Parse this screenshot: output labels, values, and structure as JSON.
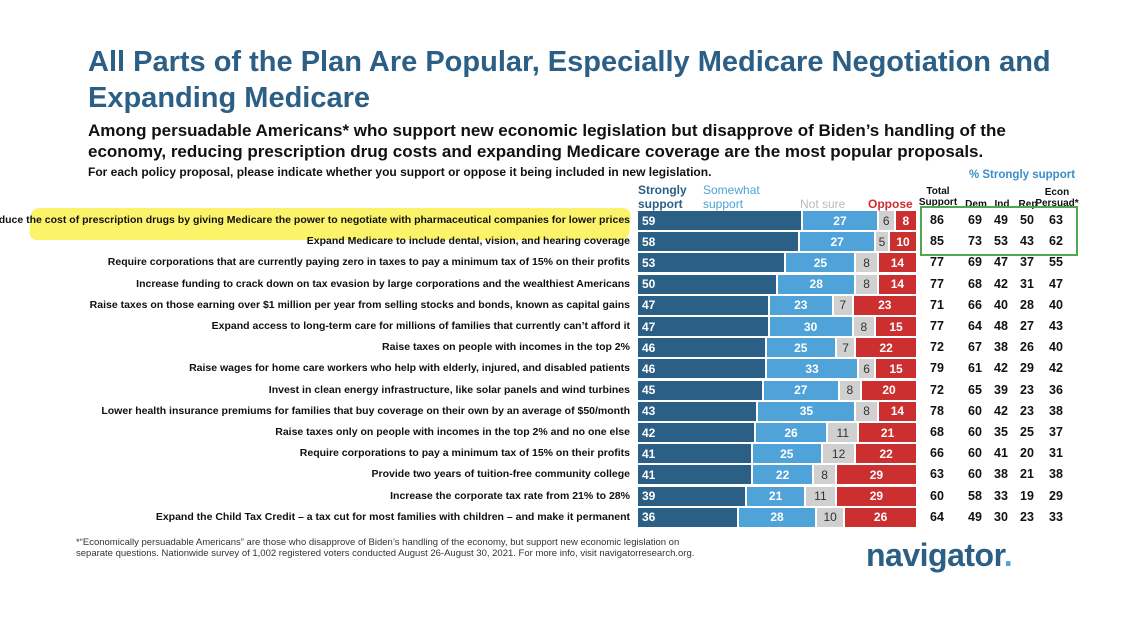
{
  "title": "All Parts of the Plan Are Popular, Especially Medicare Negotiation and Expanding Medicare",
  "subtitle": "Among persuadable Americans* who support new economic legislation but disapprove of Biden’s handling of the economy, reducing prescription drug costs and expanding Medicare coverage are the most popular proposals.",
  "question": "For each policy proposal, please indicate whether you support or oppose it being included in new legislation.",
  "headers": {
    "strongly_support": "Strongly support",
    "somewhat_support": "Somewhat support",
    "not_sure": "Not sure",
    "oppose": "Oppose",
    "total_support": "Total Support",
    "pct_strongly_support": "% Strongly support",
    "dem": "Dem",
    "ind": "Ind",
    "rep": "Rep",
    "econ_persuad": "Econ Persuad*"
  },
  "colors": {
    "strongly_support": "#2b5f86",
    "somewhat_support": "#4fa3d8",
    "not_sure": "#d0d0d0",
    "oppose": "#cc2f2f",
    "highlight": "#fbf35a",
    "box": "#4fa84f"
  },
  "chart_data": {
    "type": "bar",
    "orientation": "horizontal",
    "stacked": true,
    "categories": [
      "Reduce the cost of prescription drugs by giving Medicare the power to negotiate with pharmaceutical companies for lower prices",
      "Expand Medicare to include dental, vision, and hearing coverage",
      "Require corporations that are currently paying zero in taxes to pay a minimum tax of 15% on their profits",
      "Increase funding to crack down on tax evasion by large corporations and the wealthiest Americans",
      "Raise taxes on those earning over $1 million per year from selling stocks and bonds, known as capital gains",
      "Expand access to long-term care for millions of families that currently can’t afford it",
      "Raise taxes on people with incomes in the top 2%",
      "Raise wages for home care workers who help with elderly, injured, and disabled patients",
      "Invest in clean energy infrastructure, like solar panels and wind turbines",
      "Lower health insurance premiums for families that buy coverage on their own by an average of $50/month",
      "Raise taxes only on people with incomes in the top 2% and no one else",
      "Require corporations to pay a minimum tax of 15% on their profits",
      "Provide two years of tuition-free community college",
      "Increase the corporate tax rate from 21% to 28%",
      "Expand the Child Tax Credit – a tax cut for most families with children – and make it permanent"
    ],
    "series": [
      {
        "name": "Strongly support",
        "values": [
          59,
          58,
          53,
          50,
          47,
          47,
          46,
          46,
          45,
          43,
          42,
          41,
          41,
          39,
          36
        ]
      },
      {
        "name": "Somewhat support",
        "values": [
          27,
          27,
          25,
          28,
          23,
          30,
          25,
          33,
          27,
          35,
          26,
          25,
          22,
          21,
          28
        ]
      },
      {
        "name": "Not sure",
        "values": [
          6,
          5,
          8,
          8,
          7,
          8,
          7,
          6,
          8,
          8,
          11,
          12,
          8,
          11,
          10
        ]
      },
      {
        "name": "Oppose",
        "values": [
          8,
          10,
          14,
          14,
          23,
          15,
          22,
          15,
          20,
          14,
          21,
          22,
          29,
          29,
          26
        ]
      }
    ],
    "table_columns": [
      {
        "name": "Total Support",
        "values": [
          86,
          85,
          77,
          77,
          71,
          77,
          72,
          79,
          72,
          78,
          68,
          66,
          63,
          60,
          64
        ]
      },
      {
        "name": "Dem",
        "values": [
          69,
          73,
          69,
          68,
          66,
          64,
          67,
          61,
          65,
          60,
          60,
          60,
          60,
          58,
          49
        ]
      },
      {
        "name": "Ind",
        "values": [
          49,
          53,
          47,
          42,
          40,
          48,
          38,
          42,
          39,
          42,
          35,
          41,
          38,
          33,
          30
        ]
      },
      {
        "name": "Rep",
        "values": [
          50,
          43,
          37,
          31,
          28,
          27,
          26,
          29,
          23,
          23,
          25,
          20,
          21,
          19,
          23
        ]
      },
      {
        "name": "Econ Persuad*",
        "values": [
          63,
          62,
          55,
          47,
          40,
          43,
          40,
          42,
          36,
          38,
          37,
          31,
          38,
          29,
          33
        ]
      }
    ],
    "highlighted_rows": [
      0,
      1
    ]
  },
  "footnote": "*“Economically persuadable Americans” are those who disapprove of Biden’s handling of the economy, but support new economic legislation on separate questions. Nationwide survey of 1,002 registered voters conducted August 26-August 30, 2021. For more info, visit navigatorresearch.org.",
  "logo": {
    "text": "navigator",
    "dot": "."
  }
}
